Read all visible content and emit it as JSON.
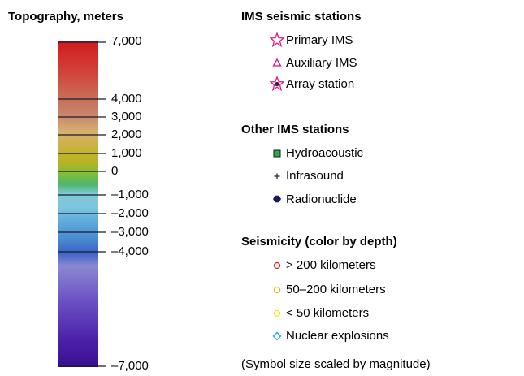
{
  "topography": {
    "title": "Topography, meters",
    "labels": [
      "7,000",
      "4,000",
      "3,000",
      "2,000",
      "1,000",
      "0",
      "–1,000",
      "–2,000",
      "–3,000",
      "–4,000",
      "–7,000"
    ]
  },
  "ims_seismic": {
    "title": "IMS seismic stations",
    "items": [
      {
        "label": "Primary IMS",
        "icon": "star-outline-icon",
        "color": "#e0187f"
      },
      {
        "label": "Auxiliary IMS",
        "icon": "triangle-outline-icon",
        "color": "#e0187f"
      },
      {
        "label": "Array station",
        "icon": "star-dot-icon",
        "color": "#e0187f"
      }
    ]
  },
  "other_ims": {
    "title": "Other IMS stations",
    "items": [
      {
        "label": "Hydroacoustic",
        "icon": "square-icon",
        "color": "#2fa84f"
      },
      {
        "label": "Infrasound",
        "icon": "plus-icon",
        "color": "#444466"
      },
      {
        "label": "Radionuclide",
        "icon": "hexagon-icon",
        "color": "#1c1c5a"
      }
    ]
  },
  "seismicity": {
    "title": "Seismicity (color by depth)",
    "items": [
      {
        "label": "> 200 kilometers",
        "icon": "circle-red-icon",
        "color": "#e02020"
      },
      {
        "label": "50–200 kilometers",
        "icon": "circle-orange-icon",
        "color": "#f0b400"
      },
      {
        "label": "< 50 kilometers",
        "icon": "circle-yellow-icon",
        "color": "#f2e600"
      },
      {
        "label": "Nuclear explosions",
        "icon": "diamond-icon",
        "color": "#19a8d8"
      }
    ],
    "note": "(Symbol size scaled by magnitude)"
  }
}
